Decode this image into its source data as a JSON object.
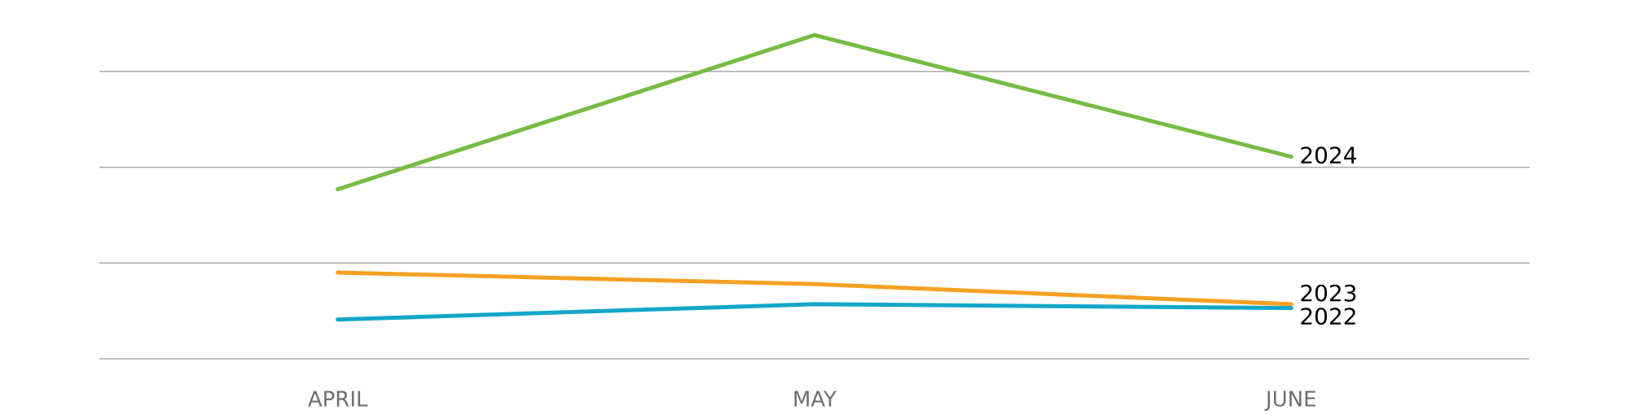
{
  "chart_data": {
    "type": "line",
    "categories": [
      "APRIL",
      "MAY",
      "JUNE"
    ],
    "series": [
      {
        "name": "2024",
        "color": "#76bc43",
        "values": [
          1.77,
          3.38,
          2.11
        ]
      },
      {
        "name": "2023",
        "color": "#f5a023",
        "values": [
          0.9,
          0.78,
          0.57
        ]
      },
      {
        "name": "2022",
        "color": "#14a6c9",
        "values": [
          0.41,
          0.57,
          0.53
        ]
      }
    ],
    "ylim": [
      0,
      3.5
    ],
    "yticks": [
      0,
      1,
      2,
      3
    ],
    "grid": true,
    "show_ytick_labels": false
  }
}
